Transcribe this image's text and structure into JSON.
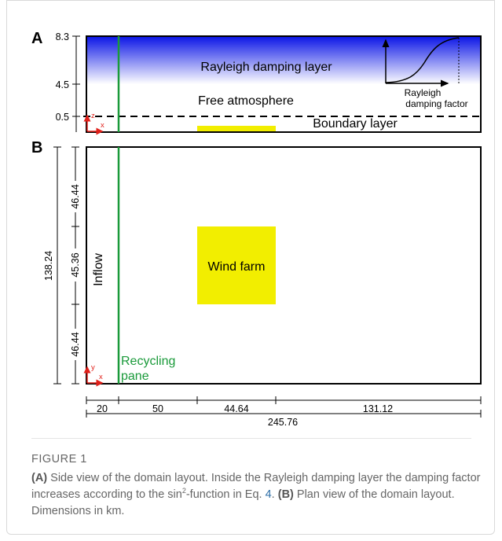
{
  "panel_a": {
    "letter": "A",
    "y_ticks": [
      "8.3",
      "4.5",
      "0.5"
    ],
    "damping_layer_label": "Rayleigh damping layer",
    "free_atmosphere_label": "Free atmosphere",
    "boundary_layer_label": "Boundary layer",
    "inset_label_line1": "Rayleigh",
    "inset_label_line2": "damping factor",
    "axis_z": "z",
    "axis_x": "x"
  },
  "panel_b": {
    "letter": "B",
    "total_height": "138.24",
    "segments_y": [
      "46.44",
      "45.36",
      "46.44"
    ],
    "inflow_label": "Inflow",
    "wind_farm_label": "Wind farm",
    "recycling_line1": "Recycling",
    "recycling_line2": "pane",
    "axis_y": "y",
    "axis_x": "x",
    "segments_x": [
      "20",
      "50",
      "44.64",
      "131.12"
    ],
    "total_width": "245.76"
  },
  "colors": {
    "damping_top": "#0a14e6",
    "wind_farm": "#f2ee00",
    "recycling": "#1a9a3a",
    "axes_red": "#e0201a"
  },
  "caption": {
    "figure_label": "FIGURE 1",
    "a_tag": "(A)",
    "a_text_1": " Side view of the domain layout. Inside the Rayleigh damping layer the damping factor increases according to the sin",
    "sup": "2",
    "a_text_2": "-function in Eq. ",
    "eq_ref": "4",
    "a_text_3": ". ",
    "b_tag": "(B)",
    "b_text": " Plan view of the domain layout. Dimensions in km."
  }
}
